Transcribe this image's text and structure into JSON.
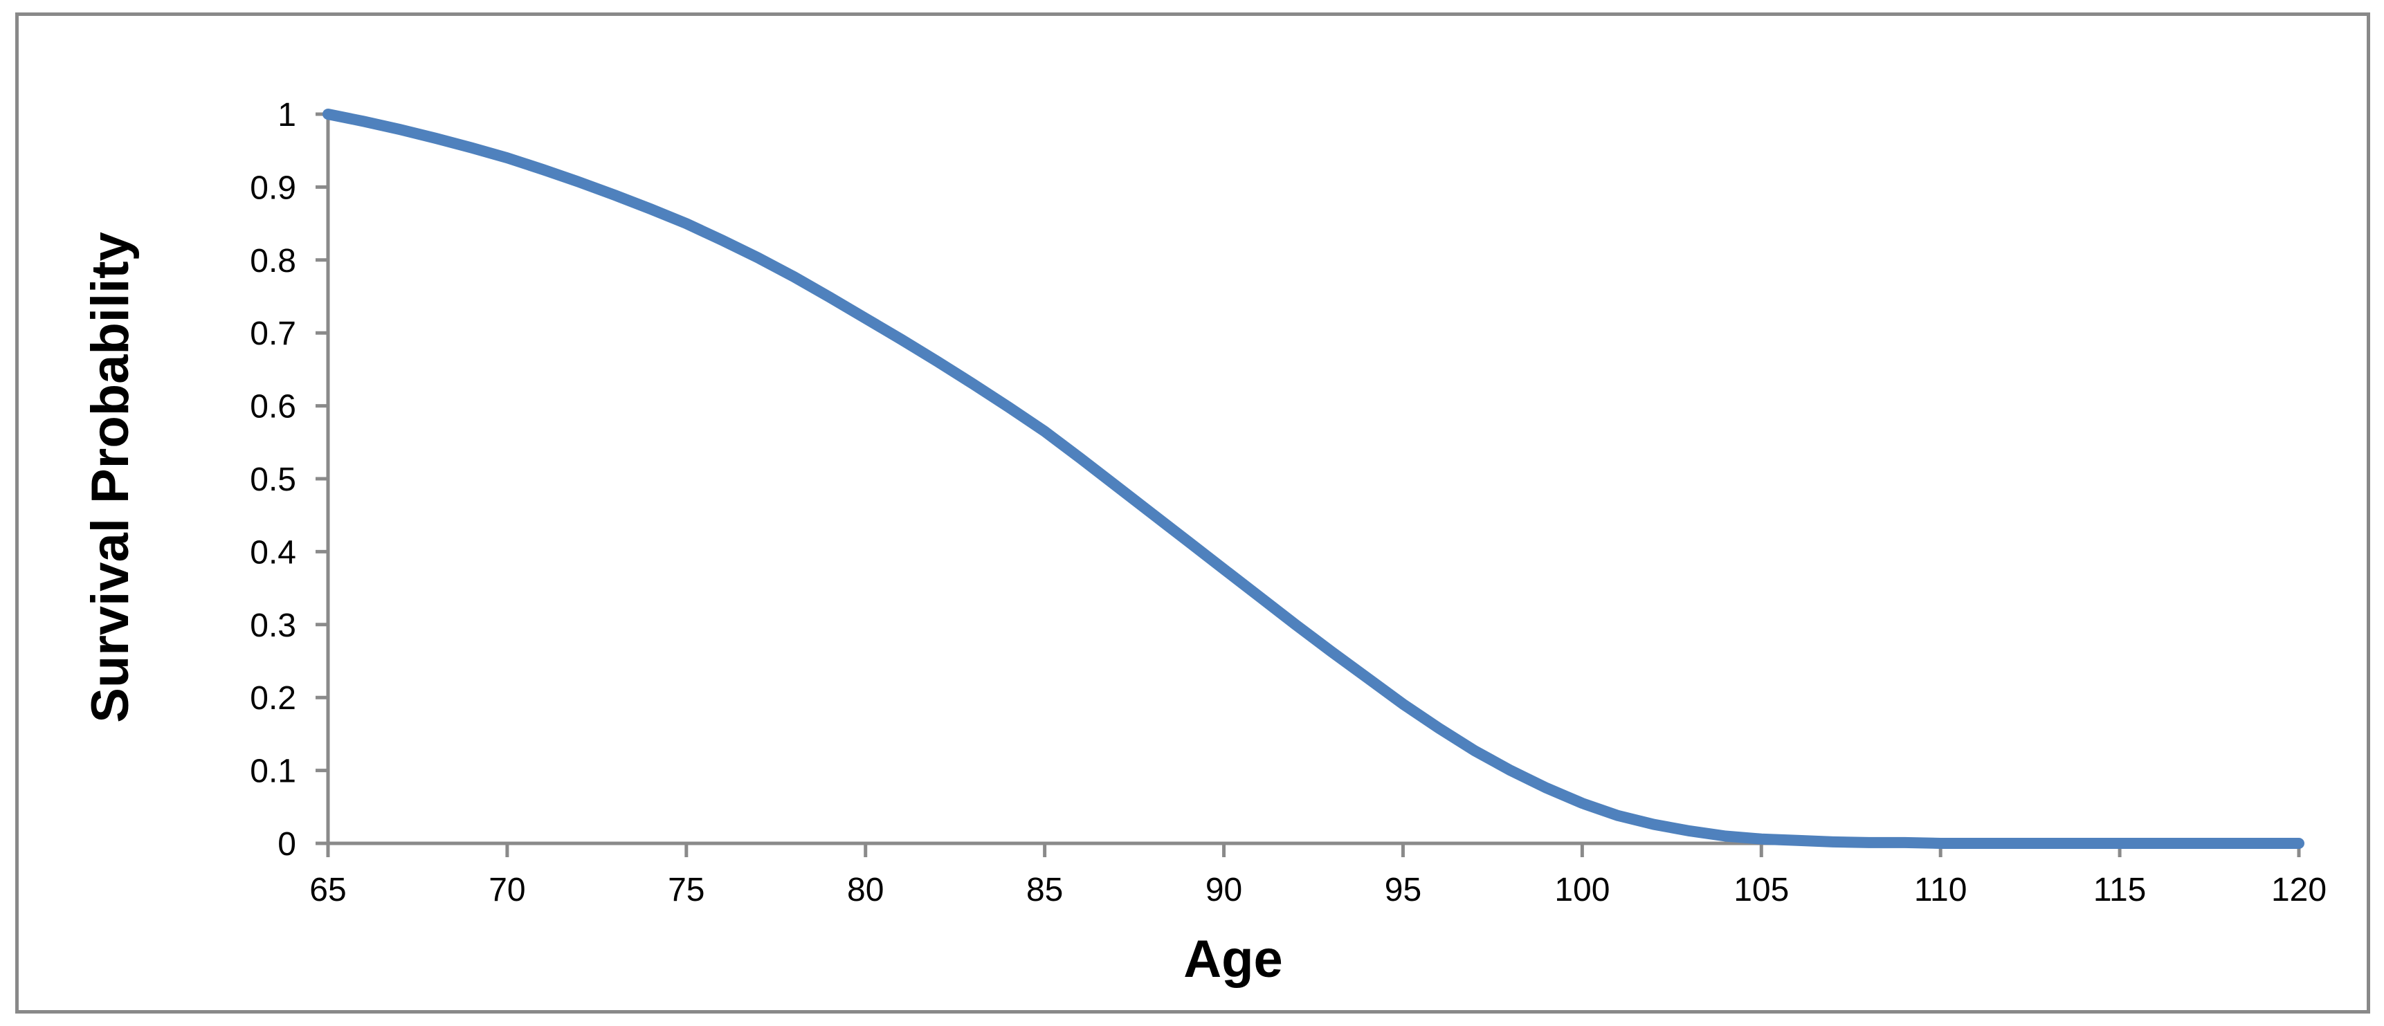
{
  "chart_data": {
    "type": "line",
    "title": "",
    "xlabel": "Age",
    "ylabel": "Survival Probability",
    "xlim": [
      65,
      120
    ],
    "ylim": [
      0,
      1
    ],
    "grid": false,
    "legend": "none",
    "x_ticks": [
      65,
      70,
      75,
      80,
      85,
      90,
      95,
      100,
      105,
      110,
      115,
      120
    ],
    "y_ticks": [
      0,
      0.1,
      0.2,
      0.3,
      0.4,
      0.5,
      0.6,
      0.7,
      0.8,
      0.9,
      1
    ],
    "y_tick_labels": [
      "0",
      "0.1",
      "0.2",
      "0.3",
      "0.4",
      "0.5",
      "0.6",
      "0.7",
      "0.8",
      "0.9",
      "1"
    ],
    "series": [
      {
        "name": "Survival Probability",
        "color": "#4F81BD",
        "x": [
          65,
          66,
          67,
          68,
          69,
          70,
          71,
          72,
          73,
          74,
          75,
          76,
          77,
          78,
          79,
          80,
          81,
          82,
          83,
          84,
          85,
          86,
          87,
          88,
          89,
          90,
          91,
          92,
          93,
          94,
          95,
          96,
          97,
          98,
          99,
          100,
          101,
          102,
          103,
          104,
          105,
          106,
          107,
          108,
          109,
          110,
          111,
          112,
          113,
          114,
          115,
          116,
          117,
          118,
          119,
          120
        ],
        "y": [
          1.0,
          0.99,
          0.979,
          0.967,
          0.954,
          0.94,
          0.924,
          0.907,
          0.889,
          0.87,
          0.85,
          0.827,
          0.803,
          0.777,
          0.749,
          0.72,
          0.691,
          0.661,
          0.63,
          0.598,
          0.565,
          0.528,
          0.49,
          0.452,
          0.414,
          0.376,
          0.338,
          0.3,
          0.263,
          0.227,
          0.191,
          0.158,
          0.127,
          0.1,
          0.076,
          0.055,
          0.038,
          0.026,
          0.017,
          0.01,
          0.006,
          0.004,
          0.002,
          0.001,
          0.001,
          0.0,
          0.0,
          0.0,
          0.0,
          0.0,
          0.0,
          0.0,
          0.0,
          0.0,
          0.0,
          0.0
        ]
      }
    ]
  },
  "colors": {
    "curve": "#4F81BD",
    "axis": "#8A8A8A",
    "border": "#898989",
    "text": "#000000",
    "background": "#FFFFFF"
  }
}
